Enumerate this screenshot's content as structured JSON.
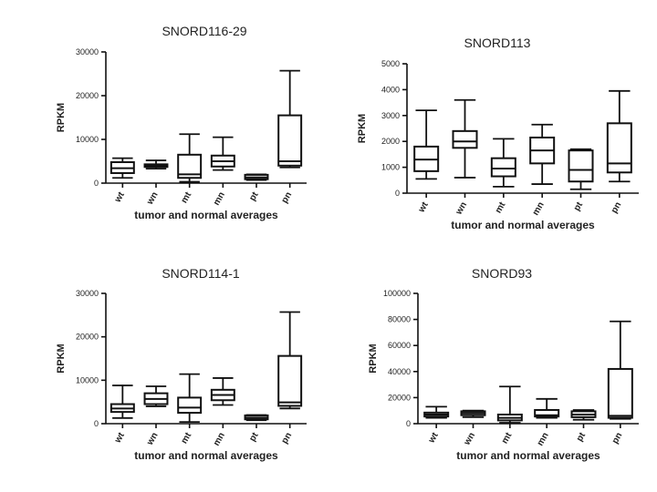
{
  "chart_data": [
    {
      "type": "boxplot",
      "title": "SNORD116-29",
      "xlabel": "tumor and normal averages",
      "ylabel": "RPKM",
      "ylim": [
        0,
        30000
      ],
      "yticks": [
        0,
        10000,
        20000,
        30000
      ],
      "categories": [
        "wt",
        "wn",
        "mt",
        "mn",
        "pt",
        "pn"
      ],
      "series": [
        {
          "name": "wt",
          "min": 1200,
          "q1": 2300,
          "median": 3400,
          "q3": 4800,
          "max": 5700
        },
        {
          "name": "wn",
          "min": 3300,
          "q1": 3700,
          "median": 4000,
          "q3": 4300,
          "max": 5200
        },
        {
          "name": "mt",
          "min": 300,
          "q1": 1200,
          "median": 2000,
          "q3": 6500,
          "max": 11200
        },
        {
          "name": "mn",
          "min": 3000,
          "q1": 3800,
          "median": 5000,
          "q3": 6300,
          "max": 10500
        },
        {
          "name": "pt",
          "min": 700,
          "q1": 900,
          "median": 1300,
          "q3": 1900,
          "max": 2000
        },
        {
          "name": "pn",
          "min": 3600,
          "q1": 4000,
          "median": 5000,
          "q3": 15500,
          "max": 25700
        }
      ]
    },
    {
      "type": "boxplot",
      "title": "SNORD113",
      "xlabel": "tumor and normal averages",
      "ylabel": "RPKM",
      "ylim": [
        0,
        5000
      ],
      "yticks": [
        0,
        1000,
        2000,
        3000,
        4000,
        5000
      ],
      "categories": [
        "wt",
        "wn",
        "mt",
        "mn",
        "pt",
        "pn"
      ],
      "series": [
        {
          "name": "wt",
          "min": 550,
          "q1": 850,
          "median": 1300,
          "q3": 1800,
          "max": 3200
        },
        {
          "name": "wn",
          "min": 600,
          "q1": 1750,
          "median": 2000,
          "q3": 2400,
          "max": 3600
        },
        {
          "name": "mt",
          "min": 250,
          "q1": 650,
          "median": 950,
          "q3": 1350,
          "max": 2100
        },
        {
          "name": "mn",
          "min": 350,
          "q1": 1150,
          "median": 1650,
          "q3": 2150,
          "max": 2650
        },
        {
          "name": "pt",
          "min": 150,
          "q1": 450,
          "median": 900,
          "q3": 1650,
          "max": 1700
        },
        {
          "name": "pn",
          "min": 450,
          "q1": 800,
          "median": 1150,
          "q3": 2700,
          "max": 3950
        }
      ]
    },
    {
      "type": "boxplot",
      "title": "SNORD114-1",
      "xlabel": "tumor and normal averages",
      "ylabel": "RPKM",
      "ylim": [
        0,
        30000
      ],
      "yticks": [
        0,
        10000,
        20000,
        30000
      ],
      "categories": [
        "wt",
        "wn",
        "mt",
        "mn",
        "pt",
        "pn"
      ],
      "series": [
        {
          "name": "wt",
          "min": 1300,
          "q1": 2700,
          "median": 3500,
          "q3": 4500,
          "max": 8800
        },
        {
          "name": "wn",
          "min": 4000,
          "q1": 4500,
          "median": 5700,
          "q3": 7000,
          "max": 8600
        },
        {
          "name": "mt",
          "min": 400,
          "q1": 2500,
          "median": 3700,
          "q3": 6000,
          "max": 11400
        },
        {
          "name": "mn",
          "min": 4300,
          "q1": 5400,
          "median": 6600,
          "q3": 7800,
          "max": 10500
        },
        {
          "name": "pt",
          "min": 800,
          "q1": 1000,
          "median": 1400,
          "q3": 1900,
          "max": 2000
        },
        {
          "name": "pn",
          "min": 3500,
          "q1": 4100,
          "median": 4900,
          "q3": 15600,
          "max": 25700
        }
      ]
    },
    {
      "type": "boxplot",
      "title": "SNORD93",
      "xlabel": "tumor and normal averages",
      "ylabel": "RPKM",
      "ylim": [
        0,
        100000
      ],
      "yticks": [
        0,
        20000,
        40000,
        60000,
        80000,
        100000
      ],
      "categories": [
        "wt",
        "wn",
        "mt",
        "mn",
        "pt",
        "pn"
      ],
      "series": [
        {
          "name": "wt",
          "min": 4500,
          "q1": 5500,
          "median": 7000,
          "q3": 8500,
          "max": 13000
        },
        {
          "name": "wn",
          "min": 5000,
          "q1": 6500,
          "median": 8000,
          "q3": 9500,
          "max": 10000
        },
        {
          "name": "mt",
          "min": 700,
          "q1": 2500,
          "median": 4500,
          "q3": 7000,
          "max": 28500
        },
        {
          "name": "mn",
          "min": 4500,
          "q1": 5500,
          "median": 6500,
          "q3": 10500,
          "max": 19000
        },
        {
          "name": "pt",
          "min": 3000,
          "q1": 5000,
          "median": 7000,
          "q3": 9500,
          "max": 10500
        },
        {
          "name": "pn",
          "min": 3700,
          "q1": 4500,
          "median": 6000,
          "q3": 42000,
          "max": 78500
        }
      ]
    }
  ]
}
